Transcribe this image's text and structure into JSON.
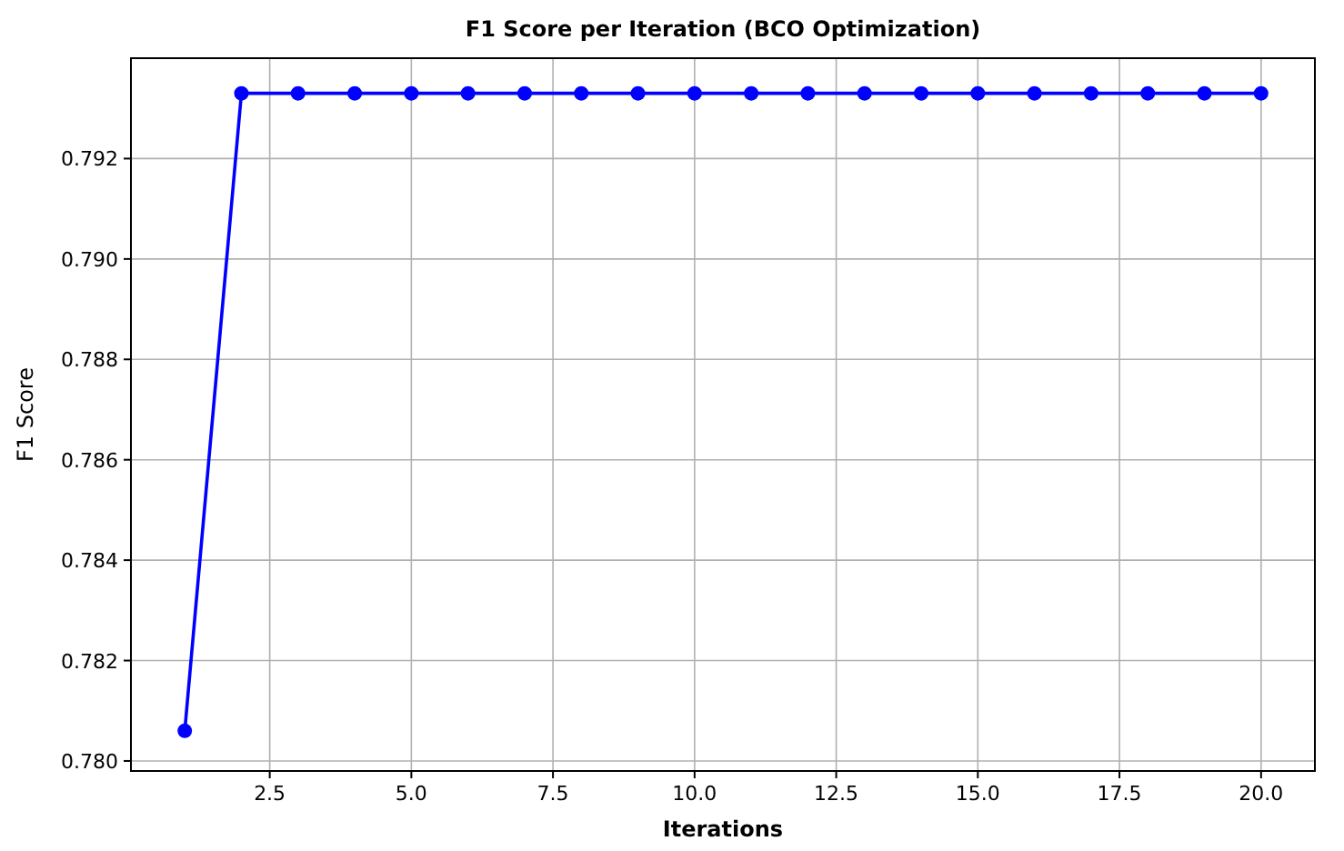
{
  "chart_data": {
    "type": "line",
    "title": "F1 Score per Iteration (BCO Optimization)",
    "xlabel": "Iterations",
    "ylabel": "F1 Score",
    "x": [
      1,
      2,
      3,
      4,
      5,
      6,
      7,
      8,
      9,
      10,
      11,
      12,
      13,
      14,
      15,
      16,
      17,
      18,
      19,
      20
    ],
    "series": [
      {
        "color": "#0000ff",
        "values": [
          0.7806,
          0.7933,
          0.7933,
          0.7933,
          0.7933,
          0.7933,
          0.7933,
          0.7933,
          0.7933,
          0.7933,
          0.7933,
          0.7933,
          0.7933,
          0.7933,
          0.7933,
          0.7933,
          0.7933,
          0.7933,
          0.7933,
          0.7933
        ]
      }
    ],
    "xlim": [
      0.05,
      20.95
    ],
    "xticks": [
      {
        "value": 2.5,
        "label": "2.5"
      },
      {
        "value": 5,
        "label": "5.0"
      },
      {
        "value": 7.5,
        "label": "7.5"
      },
      {
        "value": 10,
        "label": "10.0"
      },
      {
        "value": 12.5,
        "label": "12.5"
      },
      {
        "value": 15,
        "label": "15.0"
      },
      {
        "value": 17.5,
        "label": "17.5"
      },
      {
        "value": 20,
        "label": "20.0"
      }
    ],
    "ylim": [
      0.7798,
      0.794
    ],
    "yticks": [
      {
        "value": 0.78,
        "label": "0.780"
      },
      {
        "value": 0.782,
        "label": "0.782"
      },
      {
        "value": 0.784,
        "label": "0.784"
      },
      {
        "value": 0.786,
        "label": "0.786"
      },
      {
        "value": 0.788,
        "label": "0.788"
      },
      {
        "value": 0.79,
        "label": "0.790"
      },
      {
        "value": 0.792,
        "label": "0.792"
      }
    ],
    "grid": true,
    "marker": "circle",
    "line_style": "solid"
  }
}
